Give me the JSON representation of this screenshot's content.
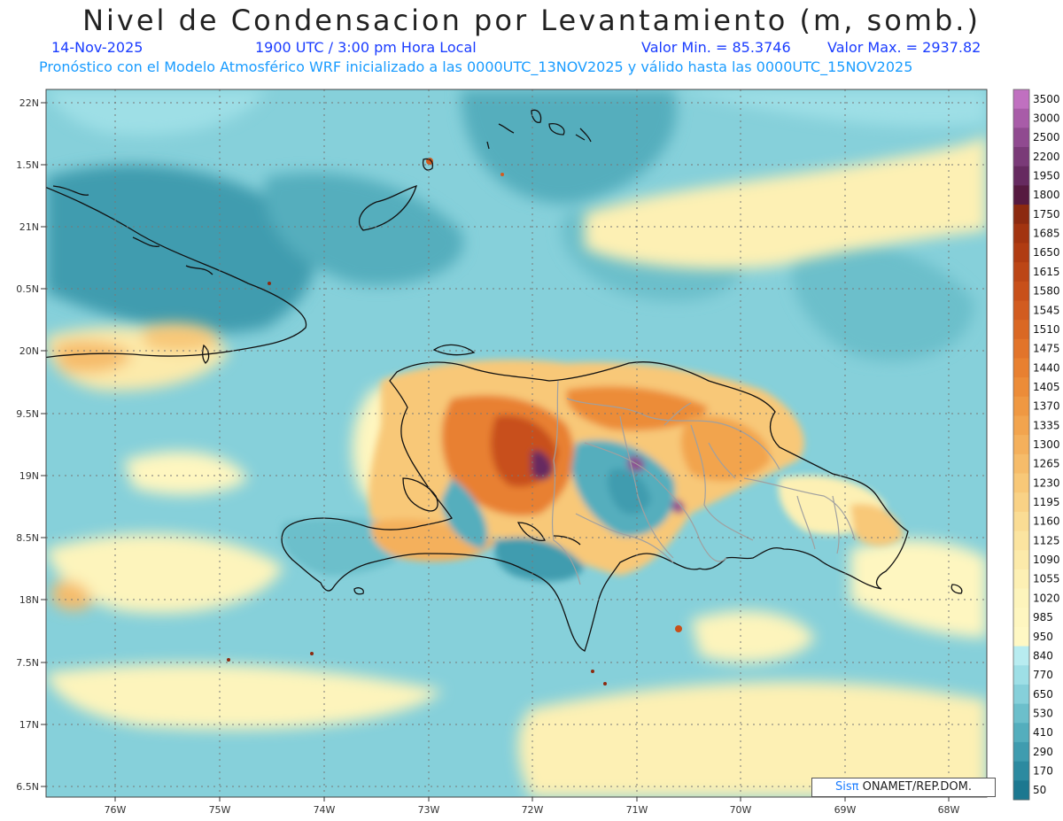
{
  "header": {
    "title": "Nivel de Condensacion por Levantamiento (m, somb.)",
    "date": "14-Nov-2025",
    "time": "1900 UTC / 3:00 pm Hora Local",
    "valmin": "Valor Min. = 85.3746",
    "valmax": "Valor Max. = 2937.82",
    "forecast": "Pronóstico con el Modelo Atmosférico WRF inicializado a las 0000UTC_13NOV2025 y válido hasta las  0000UTC_15NOV2025"
  },
  "axes": {
    "lat_labels": [
      "22N",
      "1.5N",
      "21N",
      "0.5N",
      "20N",
      "9.5N",
      "19N",
      "8.5N",
      "18N",
      "7.5N",
      "17N",
      "6.5N"
    ],
    "lon_labels": [
      "76W",
      "75W",
      "74W",
      "73W",
      "72W",
      "71W",
      "70W",
      "69W",
      "68W"
    ]
  },
  "colorbar": {
    "levels": [
      "3500",
      "3000",
      "2500",
      "2200",
      "1950",
      "1800",
      "1750",
      "1685",
      "1650",
      "1615",
      "1580",
      "1545",
      "1510",
      "1475",
      "1440",
      "1405",
      "1370",
      "1335",
      "1300",
      "1265",
      "1230",
      "1195",
      "1160",
      "1125",
      "1090",
      "1055",
      "1020",
      "985",
      "950",
      "840",
      "770",
      "650",
      "530",
      "410",
      "290",
      "170",
      "50"
    ],
    "colors": [
      "#c070c0",
      "#a85ca8",
      "#904a90",
      "#7a3a78",
      "#662a60",
      "#561a40",
      "#8c2a10",
      "#a23410",
      "#b03c12",
      "#bc4616",
      "#c8501a",
      "#d25c20",
      "#da6824",
      "#e2742a",
      "#e88030",
      "#ec8c38",
      "#ef9842",
      "#f2a44e",
      "#f4b05c",
      "#f6bc6a",
      "#f8c878",
      "#f9d286",
      "#fadc94",
      "#fbe4a0",
      "#fceaaa",
      "#fdf0b4",
      "#fdf4bc",
      "#fef6c0",
      "#fff8c4",
      "#b8ecf0",
      "#9edfe6",
      "#86d0da",
      "#6cbfcb",
      "#54aebd",
      "#3f9caf",
      "#2c8aa0",
      "#1c7890"
    ]
  },
  "credit": {
    "logo": "Sisπ",
    "text": " ONAMET/REP.DOM."
  }
}
